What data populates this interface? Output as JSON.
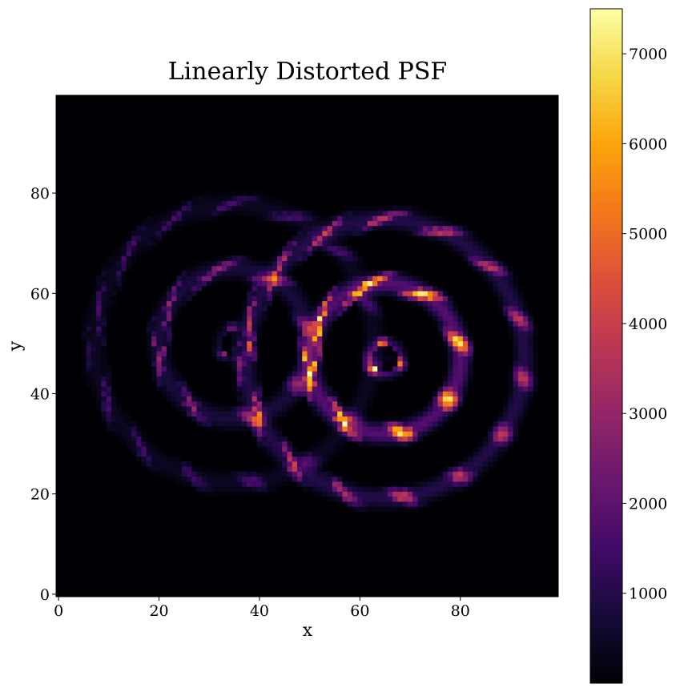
{
  "chart_data": {
    "type": "heatmap",
    "title": "Linearly Distorted PSF",
    "xlabel": "x",
    "ylabel": "y",
    "xlim": [
      0,
      99
    ],
    "ylim": [
      0,
      99
    ],
    "x_ticks": [
      0,
      20,
      40,
      60,
      80
    ],
    "y_ticks": [
      0,
      20,
      40,
      60,
      80
    ],
    "colormap": "inferno",
    "colorbar": {
      "range": [
        0,
        7500
      ],
      "ticks": [
        1000,
        2000,
        3000,
        4000,
        5000,
        6000,
        7000
      ],
      "position": "right"
    },
    "grid": false,
    "components": [
      {
        "center": [
          65,
          47
        ],
        "value_max": 7400,
        "ring_count": 4,
        "ring_spacing_px": 6.5
      },
      {
        "center": [
          35,
          50
        ],
        "value_max": 3200,
        "ring_count": 4,
        "ring_spacing_px": 6.5
      }
    ]
  }
}
